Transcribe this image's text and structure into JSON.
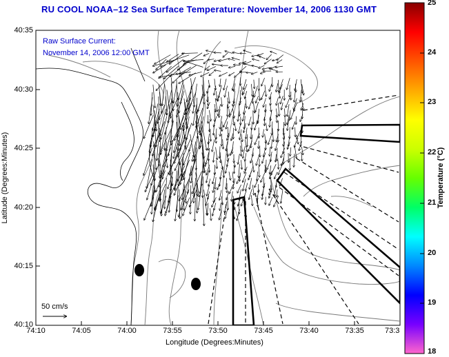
{
  "title": "RU COOL  NOAA–12  Sea Surface Temperature:  November 14, 2006 1130 GMT",
  "subtitle_line1": "Raw Surface Current:",
  "subtitle_line2": "November 14, 2006 12:00 GMT",
  "axes": {
    "xlabel": "Longitude (Degrees:Minutes)",
    "ylabel": "Latitude (Degrees:Minutes)",
    "lat_ticks": [
      "40:35",
      "40:30",
      "40:25",
      "40:20",
      "40:15",
      "40:10"
    ],
    "lon_ticks": [
      "74:10",
      "74:05",
      "74:00",
      "73:55",
      "73:50",
      "73:45",
      "73:40",
      "73:35",
      "73:3"
    ]
  },
  "colorbar": {
    "label": "Temperature (°C)",
    "ticks": [
      "25",
      "24",
      "23",
      "22",
      "21",
      "20",
      "19",
      "18"
    ],
    "min": 18,
    "max": 25,
    "colors": [
      "#ff66cc",
      "#7700ff",
      "#0000ff",
      "#0088ff",
      "#00ffff",
      "#00ff66",
      "#66ff00",
      "#ccff00",
      "#ffff00",
      "#ffaa00",
      "#ff5500",
      "#ff0000",
      "#880000"
    ]
  },
  "scale": {
    "label": "50 cm/s"
  },
  "line_color": "#000000",
  "contour_color": "#777777"
}
